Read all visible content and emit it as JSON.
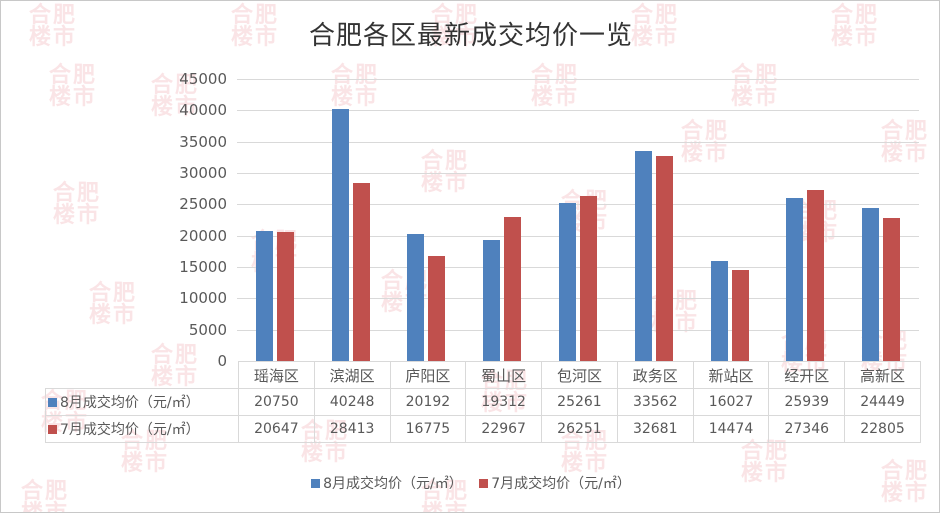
{
  "title": "合肥各区最新成交均价一览",
  "watermark": "合肥楼市",
  "colors": {
    "series_aug": "#4f81bd",
    "series_jul": "#c0504d",
    "grid": "#d9d9d9",
    "text": "#595959"
  },
  "chart_data": {
    "type": "bar",
    "title": "合肥各区最新成交均价一览",
    "xlabel": "",
    "ylabel": "",
    "ylim": [
      0,
      45000
    ],
    "yticks": [
      0,
      5000,
      10000,
      15000,
      20000,
      25000,
      30000,
      35000,
      40000,
      45000
    ],
    "grid": true,
    "legend_position": "bottom",
    "data_table": true,
    "categories": [
      "瑶海区",
      "滨湖区",
      "庐阳区",
      "蜀山区",
      "包河区",
      "政务区",
      "新站区",
      "经开区",
      "高新区"
    ],
    "series": [
      {
        "name": "8月成交均价（元/㎡）",
        "color": "#4f81bd",
        "values": [
          20750,
          40248,
          20192,
          19312,
          25261,
          33562,
          16027,
          25939,
          24449
        ]
      },
      {
        "name": "7月成交均价（元/㎡）",
        "color": "#c0504d",
        "values": [
          20647,
          28413,
          16775,
          22967,
          26251,
          32681,
          14474,
          27346,
          22805
        ]
      }
    ]
  },
  "table": {
    "row_labels": [
      "8月成交均价（元/㎡）",
      "7月成交均价（元/㎡）"
    ]
  },
  "legend": [
    "8月成交均价（元/㎡）",
    "7月成交均价（元/㎡）"
  ]
}
